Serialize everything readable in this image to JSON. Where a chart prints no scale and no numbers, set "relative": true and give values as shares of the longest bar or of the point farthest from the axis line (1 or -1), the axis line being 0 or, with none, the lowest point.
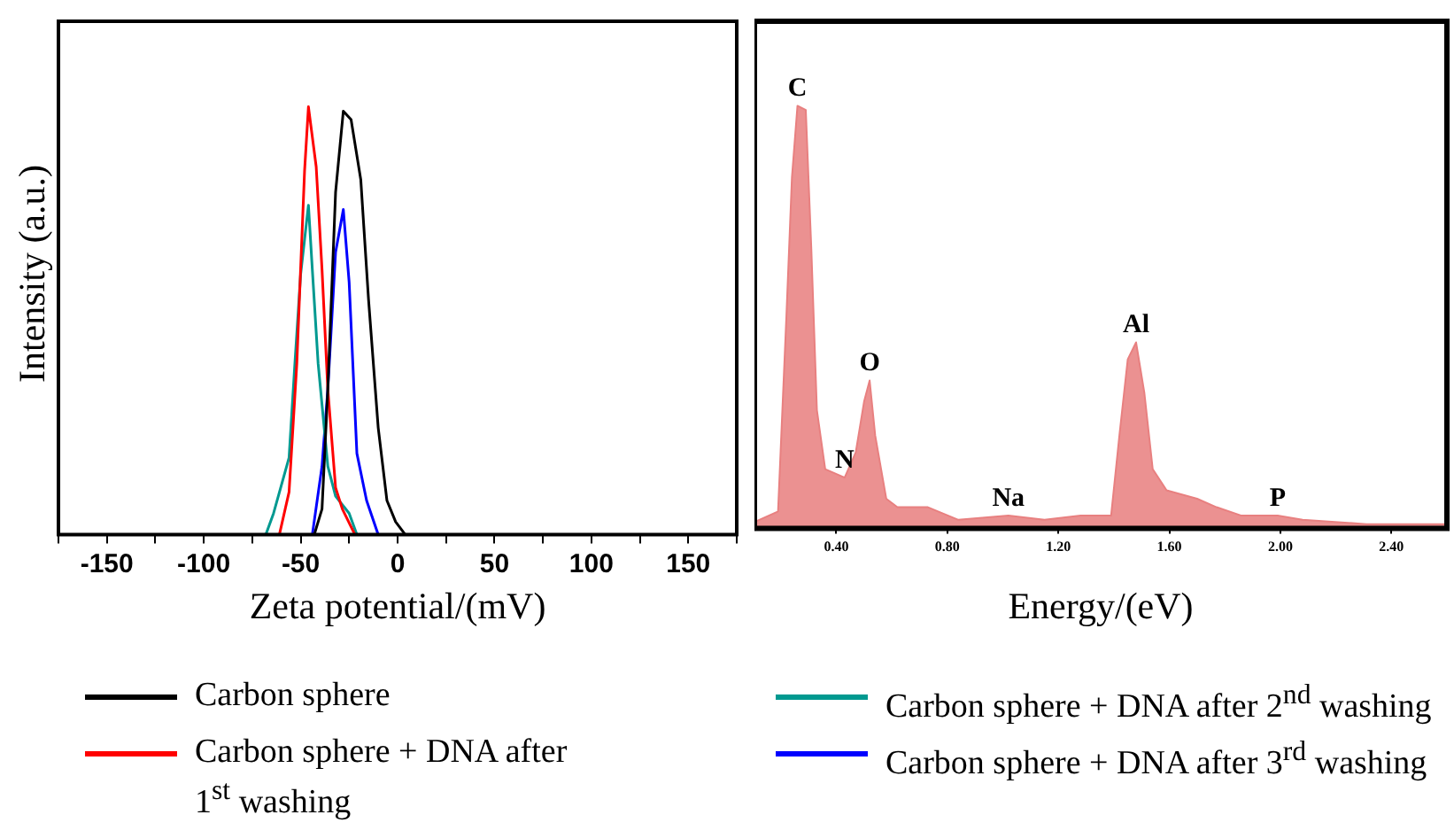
{
  "chart_data": [
    {
      "type": "line",
      "xlabel": "Zeta potential/(mV)",
      "ylabel": "Intensity (a.u.)",
      "relative": true,
      "legend": "bottom",
      "grid": false,
      "xlim": [
        -175,
        175
      ],
      "xticks": [
        {
          "value": -175,
          "label": null
        },
        -150,
        {
          "value": -125,
          "label": null
        },
        -100,
        {
          "value": -75,
          "label": null
        },
        -50,
        {
          "value": -25,
          "label": null
        },
        0,
        {
          "value": 25,
          "label": null
        },
        50,
        {
          "value": 75,
          "label": null
        },
        100,
        {
          "value": 125,
          "label": null
        },
        150,
        {
          "value": 175,
          "label": null
        }
      ],
      "series": [
        {
          "name": "Carbon sphere",
          "color": "#000000",
          "x": [
            -175,
            -43,
            -39,
            -36,
            -32,
            -28,
            -24,
            -19,
            -15,
            -10,
            -5.5,
            -1,
            4,
            175
          ],
          "values": [
            0,
            0,
            0.06,
            0.34,
            0.8,
            0.99,
            0.97,
            0.83,
            0.55,
            0.25,
            0.08,
            0.03,
            0,
            0
          ]
        },
        {
          "name": "Carbon sphere + DNA after 1$^{st}$ washing",
          "color": "#ff0000",
          "x": [
            -175,
            -61,
            -56,
            -52,
            -48,
            -46,
            -42,
            -39,
            -36,
            -32,
            -28.5,
            -22,
            175
          ],
          "values": [
            0,
            0,
            0.1,
            0.4,
            0.85,
            1,
            0.86,
            0.62,
            0.34,
            0.11,
            0.06,
            0,
            0
          ]
        },
        {
          "name": "Carbon sphere + DNA after 2$^{nd}$ washing",
          "color": "#009990",
          "x": [
            -175,
            -68,
            -64,
            -56,
            -53,
            -50,
            -46,
            -44,
            -41,
            -36,
            -32,
            -25,
            -21,
            175
          ],
          "values": [
            0,
            0,
            0.05,
            0.18,
            0.4,
            0.61,
            0.77,
            0.62,
            0.4,
            0.16,
            0.09,
            0.05,
            0,
            0
          ]
        },
        {
          "name": "Carbon sphere + DNA after 3$^{rd}$ washing",
          "color": "#0000ff",
          "x": [
            -175,
            -44,
            -39,
            -36,
            -32,
            -28,
            -25,
            -21,
            -16,
            -10,
            175
          ],
          "values": [
            0,
            0,
            0.16,
            0.34,
            0.66,
            0.76,
            0.59,
            0.19,
            0.08,
            0,
            0
          ]
        }
      ]
    },
    {
      "type": "area",
      "xlabel": "Energy/(eV)",
      "relative": true,
      "grid": false,
      "xlim": [
        0.105,
        2.6
      ],
      "xticks": [
        {
          "value": 0.4,
          "label": "0.40"
        },
        {
          "value": 0.8,
          "label": "0.80"
        },
        {
          "value": 1.2,
          "label": "1.20"
        },
        {
          "value": 1.6,
          "label": "1.60"
        },
        {
          "value": 2.0,
          "label": "2.00"
        },
        {
          "value": 2.4,
          "label": "2.40"
        }
      ],
      "annotations": [
        {
          "text": "C",
          "x": 0.26,
          "y": 1.0
        },
        {
          "text": "N",
          "x": 0.43,
          "y": 0.12
        },
        {
          "text": "O",
          "x": 0.52,
          "y": 0.35
        },
        {
          "text": "Na",
          "x": 1.02,
          "y": 0.03
        },
        {
          "text": "Al",
          "x": 1.48,
          "y": 0.44
        },
        {
          "text": "P",
          "x": 1.99,
          "y": 0.03
        }
      ],
      "series": [
        {
          "color": "#e88080",
          "x": [
            0.105,
            0.19,
            0.22,
            0.24,
            0.26,
            0.29,
            0.31,
            0.33,
            0.36,
            0.43,
            0.47,
            0.5,
            0.52,
            0.54,
            0.58,
            0.62,
            0.73,
            0.84,
            1.02,
            1.15,
            1.28,
            1.39,
            1.42,
            1.45,
            1.48,
            1.51,
            1.54,
            1.59,
            1.7,
            1.77,
            1.86,
            1.99,
            2.08,
            2.31,
            2.6
          ],
          "values": [
            0.015,
            0.04,
            0.5,
            0.83,
            1.0,
            0.99,
            0.66,
            0.28,
            0.14,
            0.12,
            0.18,
            0.3,
            0.35,
            0.22,
            0.07,
            0.05,
            0.05,
            0.02,
            0.03,
            0.02,
            0.03,
            0.03,
            0.22,
            0.4,
            0.44,
            0.32,
            0.14,
            0.09,
            0.07,
            0.05,
            0.03,
            0.03,
            0.02,
            0.01,
            0.01
          ]
        }
      ]
    }
  ]
}
